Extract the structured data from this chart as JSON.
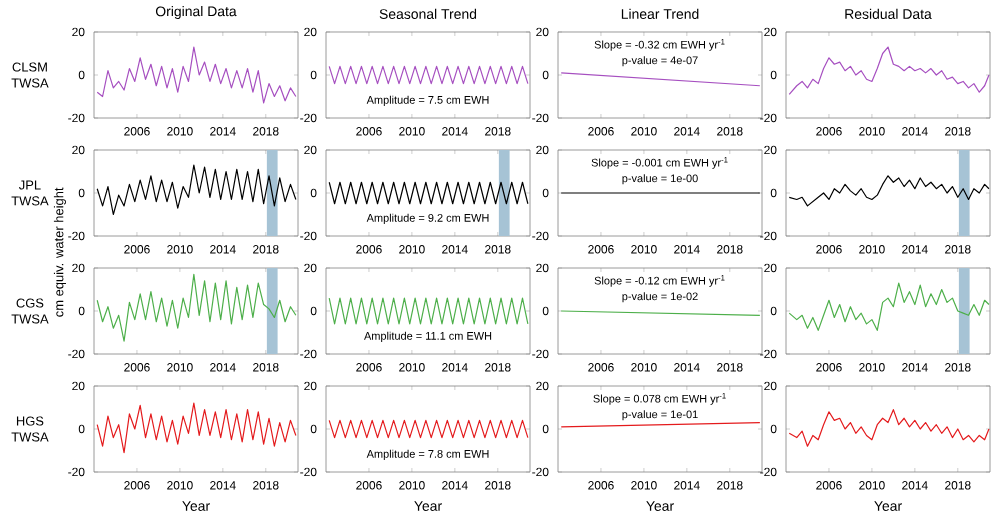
{
  "chart_data": [
    {
      "type": "line",
      "title": "Original Data",
      "ylabel": "CLSM TWSA",
      "x": [
        2002.3,
        2002.8,
        2003.3,
        2003.8,
        2004.3,
        2004.8,
        2005.3,
        2005.8,
        2006.3,
        2006.8,
        2007.3,
        2007.8,
        2008.3,
        2008.8,
        2009.3,
        2009.8,
        2010.3,
        2010.8,
        2011.3,
        2011.8,
        2012.3,
        2012.8,
        2013.3,
        2013.8,
        2014.3,
        2014.8,
        2015.3,
        2015.8,
        2016.3,
        2016.8,
        2017.3,
        2017.8,
        2018.3,
        2018.8,
        2019.3,
        2019.8,
        2020.3,
        2020.8
      ],
      "xlim": [
        2002,
        2021
      ],
      "ylim": [
        -20,
        20
      ],
      "xticks": [
        2006,
        2010,
        2014,
        2018
      ],
      "yticks": [
        -20,
        0,
        20
      ],
      "series": [
        {
          "color": "#a64fc0",
          "values": [
            -8,
            -10,
            2,
            -6,
            -3,
            -7,
            3,
            -3,
            8,
            -2,
            5,
            -5,
            4,
            -6,
            3,
            -8,
            4,
            -3,
            13,
            0,
            6,
            -3,
            5,
            -4,
            3,
            -6,
            2,
            -6,
            3,
            -8,
            2,
            -13,
            -4,
            -10,
            -5,
            -12,
            -6,
            -10
          ]
        }
      ]
    },
    {
      "type": "line",
      "title": "Seasonal Trend",
      "annotations": [
        "Amplitude = 7.5 cm EWH"
      ],
      "x": [
        2002.3,
        2002.8,
        2003.3,
        2003.8,
        2004.3,
        2004.8,
        2005.3,
        2005.8,
        2006.3,
        2006.8,
        2007.3,
        2007.8,
        2008.3,
        2008.8,
        2009.3,
        2009.8,
        2010.3,
        2010.8,
        2011.3,
        2011.8,
        2012.3,
        2012.8,
        2013.3,
        2013.8,
        2014.3,
        2014.8,
        2015.3,
        2015.8,
        2016.3,
        2016.8,
        2017.3,
        2017.8,
        2018.3,
        2018.8,
        2019.3,
        2019.8,
        2020.3,
        2020.8
      ],
      "xlim": [
        2002,
        2021
      ],
      "ylim": [
        -20,
        20
      ],
      "xticks": [
        2006,
        2010,
        2014,
        2018
      ],
      "yticks": [
        -20,
        0,
        20
      ],
      "series": [
        {
          "color": "#a64fc0",
          "values": [
            4,
            -4,
            4,
            -4,
            4,
            -4,
            4,
            -4,
            4,
            -4,
            4,
            -4,
            4,
            -4,
            4,
            -4,
            4,
            -4,
            4,
            -4,
            4,
            -4,
            4,
            -4,
            4,
            -4,
            4,
            -4,
            4,
            -4,
            4,
            -4,
            4,
            -4,
            4,
            -4,
            4,
            -4
          ]
        }
      ]
    },
    {
      "type": "line",
      "title": "Linear Trend",
      "annotations": [
        "Slope = -0.32 cm EWH yr$^{-1}$",
        "p-value = 4e-07"
      ],
      "x": [
        2002.3,
        2020.8
      ],
      "xlim": [
        2002,
        2021
      ],
      "ylim": [
        -20,
        20
      ],
      "xticks": [
        2006,
        2010,
        2014,
        2018
      ],
      "yticks": [
        -20,
        0,
        20
      ],
      "series": [
        {
          "color": "#a64fc0",
          "values": [
            1,
            -5
          ]
        }
      ]
    },
    {
      "type": "line",
      "title": "Residual Data",
      "x": [
        2002.3,
        2003,
        2003.5,
        2004,
        2004.5,
        2005,
        2005.5,
        2006,
        2006.5,
        2007,
        2007.5,
        2008,
        2008.5,
        2009,
        2009.5,
        2010,
        2010.5,
        2011,
        2011.5,
        2012,
        2012.5,
        2013,
        2013.5,
        2014,
        2014.5,
        2015,
        2015.5,
        2016,
        2016.5,
        2017,
        2017.5,
        2018,
        2018.5,
        2019,
        2019.5,
        2020,
        2020.5,
        2020.9
      ],
      "xlim": [
        2002,
        2021
      ],
      "ylim": [
        -20,
        20
      ],
      "xticks": [
        2006,
        2010,
        2014,
        2018
      ],
      "yticks": [
        -20,
        0,
        20
      ],
      "series": [
        {
          "color": "#a64fc0",
          "values": [
            -9,
            -5,
            -3,
            -6,
            -2,
            -4,
            3,
            8,
            5,
            6,
            2,
            4,
            0,
            2,
            -2,
            -3,
            3,
            10,
            13,
            5,
            4,
            2,
            4,
            2,
            3,
            1,
            3,
            0,
            2,
            -2,
            -1,
            -4,
            -3,
            -6,
            -4,
            -8,
            -5,
            0
          ]
        }
      ]
    },
    {
      "type": "line",
      "ylabel": "JPL TWSA",
      "annotations": [
        "cm equiv. water height"
      ],
      "bands": [
        {
          "axis": "x",
          "from": 2018.1,
          "to": 2019.1,
          "color": "#a6c3d5"
        }
      ],
      "x": [
        2002.3,
        2002.8,
        2003.3,
        2003.8,
        2004.3,
        2004.8,
        2005.3,
        2005.8,
        2006.3,
        2006.8,
        2007.3,
        2007.8,
        2008.3,
        2008.8,
        2009.3,
        2009.8,
        2010.3,
        2010.8,
        2011.3,
        2011.8,
        2012.3,
        2012.8,
        2013.3,
        2013.8,
        2014.3,
        2014.8,
        2015.3,
        2015.8,
        2016.3,
        2016.8,
        2017.3,
        2017.8,
        2018.3,
        2018.8,
        2019.3,
        2019.8,
        2020.3,
        2020.8
      ],
      "xlim": [
        2002,
        2021
      ],
      "ylim": [
        -20,
        20
      ],
      "xticks": [
        2006,
        2010,
        2014,
        2018
      ],
      "yticks": [
        -20,
        0,
        20
      ],
      "series": [
        {
          "color": "#000000",
          "values": [
            2,
            -6,
            3,
            -10,
            -1,
            -6,
            4,
            -4,
            6,
            -3,
            8,
            -4,
            6,
            -4,
            5,
            -7,
            3,
            -2,
            13,
            0,
            12,
            -2,
            11,
            -3,
            10,
            -3,
            11,
            -3,
            10,
            -4,
            11,
            -5,
            8,
            -6,
            7,
            -4,
            4,
            -3
          ]
        }
      ]
    },
    {
      "type": "line",
      "annotations": [
        "Amplitude = 9.2 cm EWH"
      ],
      "bands": [
        {
          "axis": "x",
          "from": 2018.1,
          "to": 2019.1,
          "color": "#a6c3d5"
        }
      ],
      "x": [
        2002.3,
        2002.8,
        2003.3,
        2003.8,
        2004.3,
        2004.8,
        2005.3,
        2005.8,
        2006.3,
        2006.8,
        2007.3,
        2007.8,
        2008.3,
        2008.8,
        2009.3,
        2009.8,
        2010.3,
        2010.8,
        2011.3,
        2011.8,
        2012.3,
        2012.8,
        2013.3,
        2013.8,
        2014.3,
        2014.8,
        2015.3,
        2015.8,
        2016.3,
        2016.8,
        2017.3,
        2017.8,
        2018.3,
        2018.8,
        2019.3,
        2019.8,
        2020.3,
        2020.8
      ],
      "xlim": [
        2002,
        2021
      ],
      "ylim": [
        -20,
        20
      ],
      "xticks": [
        2006,
        2010,
        2014,
        2018
      ],
      "yticks": [
        -20,
        0,
        20
      ],
      "series": [
        {
          "color": "#000000",
          "values": [
            5,
            -5,
            5,
            -5,
            5,
            -5,
            5,
            -5,
            5,
            -5,
            5,
            -5,
            5,
            -5,
            5,
            -5,
            5,
            -5,
            5,
            -5,
            5,
            -5,
            5,
            -5,
            5,
            -5,
            5,
            -5,
            5,
            -5,
            5,
            -5,
            5,
            -5,
            5,
            -5,
            5,
            -5
          ]
        }
      ]
    },
    {
      "type": "line",
      "annotations": [
        "Slope = -0.001 cm EWH yr$^{-1}$",
        "p-value = 1e-00"
      ],
      "x": [
        2002.3,
        2020.8
      ],
      "xlim": [
        2002,
        2021
      ],
      "ylim": [
        -20,
        20
      ],
      "xticks": [
        2006,
        2010,
        2014,
        2018
      ],
      "yticks": [
        -20,
        0,
        20
      ],
      "series": [
        {
          "color": "#000000",
          "values": [
            0,
            0
          ]
        }
      ]
    },
    {
      "type": "line",
      "bands": [
        {
          "axis": "x",
          "from": 2018.1,
          "to": 2019.1,
          "color": "#a6c3d5"
        }
      ],
      "x": [
        2002.3,
        2003,
        2003.5,
        2004,
        2004.5,
        2005,
        2005.5,
        2006,
        2006.5,
        2007,
        2007.5,
        2008,
        2008.5,
        2009,
        2009.5,
        2010,
        2010.5,
        2011,
        2011.5,
        2012,
        2012.5,
        2013,
        2013.5,
        2014,
        2014.5,
        2015,
        2015.5,
        2016,
        2016.5,
        2017,
        2017.5,
        2018,
        2018.5,
        2019,
        2019.5,
        2020,
        2020.5,
        2020.9
      ],
      "xlim": [
        2002,
        2021
      ],
      "ylim": [
        -20,
        20
      ],
      "xticks": [
        2006,
        2010,
        2014,
        2018
      ],
      "yticks": [
        -20,
        0,
        20
      ],
      "series": [
        {
          "color": "#000000",
          "values": [
            -2,
            -3,
            -2,
            -6,
            -4,
            -2,
            0,
            -3,
            2,
            0,
            4,
            1,
            -1,
            2,
            -2,
            -3,
            -1,
            4,
            8,
            5,
            7,
            3,
            6,
            2,
            7,
            3,
            5,
            2,
            4,
            0,
            3,
            -2,
            2,
            -3,
            2,
            0,
            4,
            2
          ]
        }
      ]
    },
    {
      "type": "line",
      "ylabel": "CGS TWSA",
      "bands": [
        {
          "axis": "x",
          "from": 2018.1,
          "to": 2019.1,
          "color": "#a6c3d5"
        }
      ],
      "x": [
        2002.3,
        2002.8,
        2003.3,
        2003.8,
        2004.3,
        2004.8,
        2005.3,
        2005.8,
        2006.3,
        2006.8,
        2007.3,
        2007.8,
        2008.3,
        2008.8,
        2009.3,
        2009.8,
        2010.3,
        2010.8,
        2011.3,
        2011.8,
        2012.3,
        2012.8,
        2013.3,
        2013.8,
        2014.3,
        2014.8,
        2015.3,
        2015.8,
        2016.3,
        2016.8,
        2017.3,
        2017.8,
        2018.3,
        2018.8,
        2019.3,
        2019.8,
        2020.3,
        2020.8
      ],
      "xlim": [
        2002,
        2021
      ],
      "ylim": [
        -20,
        20
      ],
      "xticks": [
        2006,
        2010,
        2014,
        2018
      ],
      "yticks": [
        -20,
        0,
        20
      ],
      "series": [
        {
          "color": "#4daf4a",
          "values": [
            5,
            -5,
            2,
            -8,
            -2,
            -14,
            4,
            -4,
            8,
            -4,
            9,
            -5,
            6,
            -7,
            5,
            -8,
            6,
            -3,
            17,
            -2,
            14,
            -5,
            13,
            -4,
            14,
            -6,
            11,
            -4,
            12,
            -3,
            13,
            3,
            1,
            -3,
            5,
            -5,
            2,
            -2
          ]
        }
      ]
    },
    {
      "type": "line",
      "annotations": [
        "Amplitude = 11.1 cm EWH"
      ],
      "x": [
        2002.3,
        2002.8,
        2003.3,
        2003.8,
        2004.3,
        2004.8,
        2005.3,
        2005.8,
        2006.3,
        2006.8,
        2007.3,
        2007.8,
        2008.3,
        2008.8,
        2009.3,
        2009.8,
        2010.3,
        2010.8,
        2011.3,
        2011.8,
        2012.3,
        2012.8,
        2013.3,
        2013.8,
        2014.3,
        2014.8,
        2015.3,
        2015.8,
        2016.3,
        2016.8,
        2017.3,
        2017.8,
        2018.3,
        2018.8,
        2019.3,
        2019.8,
        2020.3,
        2020.8
      ],
      "xlim": [
        2002,
        2021
      ],
      "ylim": [
        -20,
        20
      ],
      "xticks": [
        2006,
        2010,
        2014,
        2018
      ],
      "yticks": [
        -20,
        0,
        20
      ],
      "series": [
        {
          "color": "#4daf4a",
          "values": [
            6,
            -6,
            6,
            -6,
            6,
            -6,
            6,
            -6,
            6,
            -6,
            6,
            -6,
            6,
            -6,
            6,
            -6,
            6,
            -6,
            6,
            -6,
            6,
            -6,
            6,
            -6,
            6,
            -6,
            6,
            -6,
            6,
            -6,
            6,
            -6,
            6,
            -6,
            6,
            -6,
            6,
            -6
          ]
        }
      ]
    },
    {
      "type": "line",
      "annotations": [
        "Slope = -0.12 cm EWH yr$^{-1}$",
        "p-value = 1e-02"
      ],
      "x": [
        2002.3,
        2020.8
      ],
      "xlim": [
        2002,
        2021
      ],
      "ylim": [
        -20,
        20
      ],
      "xticks": [
        2006,
        2010,
        2014,
        2018
      ],
      "yticks": [
        -20,
        0,
        20
      ],
      "series": [
        {
          "color": "#4daf4a",
          "values": [
            0,
            -2
          ]
        }
      ]
    },
    {
      "type": "line",
      "bands": [
        {
          "axis": "x",
          "from": 2018.1,
          "to": 2019.1,
          "color": "#a6c3d5"
        }
      ],
      "x": [
        2002.3,
        2003,
        2003.5,
        2004,
        2004.5,
        2005,
        2005.5,
        2006,
        2006.5,
        2007,
        2007.5,
        2008,
        2008.5,
        2009,
        2009.5,
        2010,
        2010.5,
        2011,
        2011.5,
        2012,
        2012.5,
        2013,
        2013.5,
        2014,
        2014.5,
        2015,
        2015.5,
        2016,
        2016.5,
        2017,
        2017.5,
        2018,
        2018.5,
        2019,
        2019.5,
        2020,
        2020.5,
        2020.9
      ],
      "xlim": [
        2002,
        2021
      ],
      "ylim": [
        -20,
        20
      ],
      "xticks": [
        2006,
        2010,
        2014,
        2018
      ],
      "yticks": [
        -20,
        0,
        20
      ],
      "series": [
        {
          "color": "#4daf4a",
          "values": [
            -1,
            -4,
            -2,
            -8,
            -3,
            -9,
            -2,
            5,
            -3,
            3,
            -5,
            2,
            -4,
            -1,
            -6,
            -4,
            -9,
            4,
            6,
            2,
            13,
            4,
            9,
            3,
            12,
            2,
            8,
            3,
            10,
            4,
            6,
            0,
            -1,
            -2,
            3,
            -2,
            5,
            3
          ]
        }
      ]
    },
    {
      "type": "line",
      "ylabel": "HGS TWSA",
      "xlabel": "Year",
      "x": [
        2002.3,
        2002.8,
        2003.3,
        2003.8,
        2004.3,
        2004.8,
        2005.3,
        2005.8,
        2006.3,
        2006.8,
        2007.3,
        2007.8,
        2008.3,
        2008.8,
        2009.3,
        2009.8,
        2010.3,
        2010.8,
        2011.3,
        2011.8,
        2012.3,
        2012.8,
        2013.3,
        2013.8,
        2014.3,
        2014.8,
        2015.3,
        2015.8,
        2016.3,
        2016.8,
        2017.3,
        2017.8,
        2018.3,
        2018.8,
        2019.3,
        2019.8,
        2020.3,
        2020.8
      ],
      "xlim": [
        2002,
        2021
      ],
      "ylim": [
        -20,
        20
      ],
      "xticks": [
        2006,
        2010,
        2014,
        2018
      ],
      "yticks": [
        -20,
        0,
        20
      ],
      "series": [
        {
          "color": "#e41a1c",
          "values": [
            2,
            -8,
            6,
            -4,
            2,
            -11,
            7,
            0,
            11,
            -4,
            7,
            -5,
            6,
            -6,
            4,
            -7,
            6,
            -2,
            12,
            -3,
            9,
            -3,
            8,
            -4,
            9,
            -5,
            7,
            -6,
            9,
            -5,
            8,
            -7,
            5,
            -8,
            3,
            -6,
            4,
            -3
          ]
        }
      ]
    },
    {
      "type": "line",
      "xlabel": "Year",
      "annotations": [
        "Amplitude = 7.8 cm EWH"
      ],
      "x": [
        2002.3,
        2002.8,
        2003.3,
        2003.8,
        2004.3,
        2004.8,
        2005.3,
        2005.8,
        2006.3,
        2006.8,
        2007.3,
        2007.8,
        2008.3,
        2008.8,
        2009.3,
        2009.8,
        2010.3,
        2010.8,
        2011.3,
        2011.8,
        2012.3,
        2012.8,
        2013.3,
        2013.8,
        2014.3,
        2014.8,
        2015.3,
        2015.8,
        2016.3,
        2016.8,
        2017.3,
        2017.8,
        2018.3,
        2018.8,
        2019.3,
        2019.8,
        2020.3,
        2020.8
      ],
      "xlim": [
        2002,
        2021
      ],
      "ylim": [
        -20,
        20
      ],
      "xticks": [
        2006,
        2010,
        2014,
        2018
      ],
      "yticks": [
        -20,
        0,
        20
      ],
      "series": [
        {
          "color": "#e41a1c",
          "values": [
            4,
            -4,
            4,
            -4,
            4,
            -4,
            4,
            -4,
            4,
            -4,
            4,
            -4,
            4,
            -4,
            4,
            -4,
            4,
            -4,
            4,
            -4,
            4,
            -4,
            4,
            -4,
            4,
            -4,
            4,
            -4,
            4,
            -4,
            4,
            -4,
            4,
            -4,
            4,
            -4,
            4,
            -4
          ]
        }
      ]
    },
    {
      "type": "line",
      "xlabel": "Year",
      "annotations": [
        "Slope = 0.078 cm EWH yr$^{-1}$",
        "p-value = 1e-01"
      ],
      "x": [
        2002.3,
        2020.8
      ],
      "xlim": [
        2002,
        2021
      ],
      "ylim": [
        -20,
        20
      ],
      "xticks": [
        2006,
        2010,
        2014,
        2018
      ],
      "yticks": [
        -20,
        0,
        20
      ],
      "series": [
        {
          "color": "#e41a1c",
          "values": [
            1,
            3
          ]
        }
      ]
    },
    {
      "type": "line",
      "xlabel": "Year",
      "x": [
        2002.3,
        2003,
        2003.5,
        2004,
        2004.5,
        2005,
        2005.5,
        2006,
        2006.5,
        2007,
        2007.5,
        2008,
        2008.5,
        2009,
        2009.5,
        2010,
        2010.5,
        2011,
        2011.5,
        2012,
        2012.5,
        2013,
        2013.5,
        2014,
        2014.5,
        2015,
        2015.5,
        2016,
        2016.5,
        2017,
        2017.5,
        2018,
        2018.5,
        2019,
        2019.5,
        2020,
        2020.5,
        2020.9
      ],
      "xlim": [
        2002,
        2021
      ],
      "ylim": [
        -20,
        20
      ],
      "xticks": [
        2006,
        2010,
        2014,
        2018
      ],
      "yticks": [
        -20,
        0,
        20
      ],
      "series": [
        {
          "color": "#e41a1c",
          "values": [
            -2,
            -4,
            -1,
            -8,
            -3,
            -5,
            2,
            8,
            4,
            5,
            0,
            3,
            -2,
            1,
            -3,
            -5,
            2,
            5,
            3,
            9,
            2,
            5,
            1,
            4,
            0,
            3,
            -1,
            2,
            -2,
            1,
            -4,
            0,
            -5,
            -3,
            -6,
            -3,
            -5,
            0
          ]
        }
      ]
    }
  ]
}
